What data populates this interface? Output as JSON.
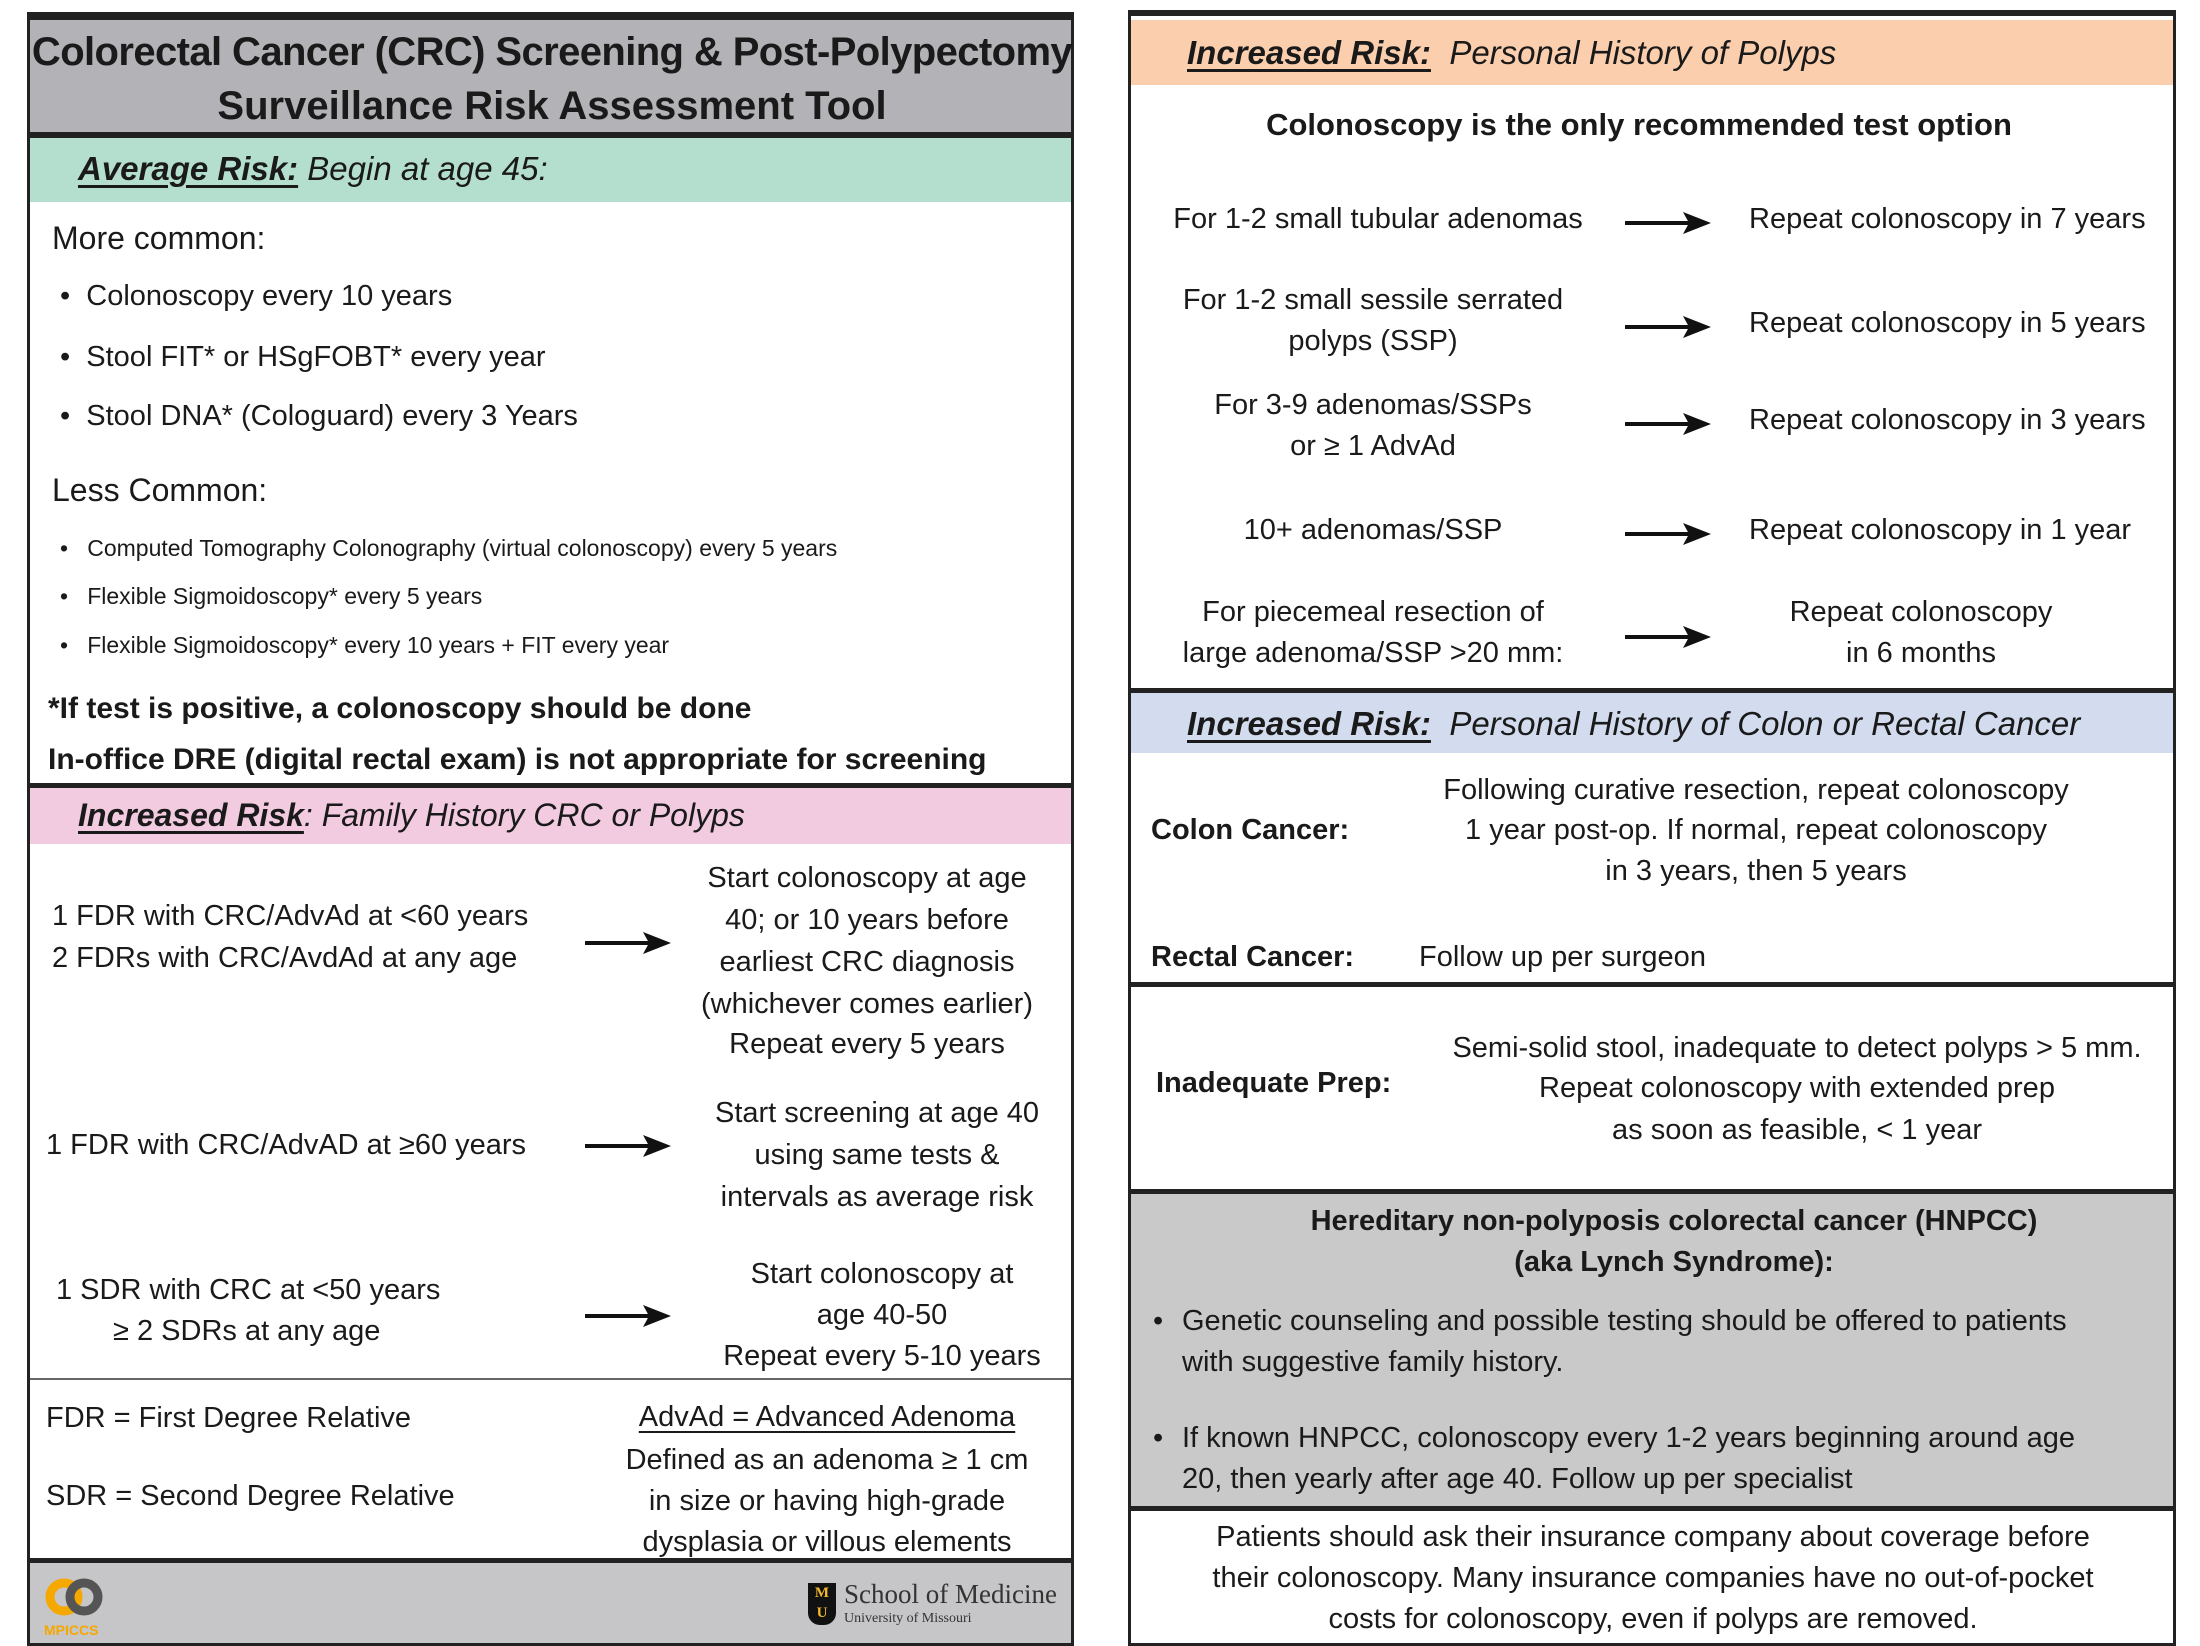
{
  "left": {
    "title": [
      "Colorectal Cancer (CRC) Screening & Post-Polypectomy",
      "Surveillance Risk Assessment Tool"
    ],
    "average": {
      "label": "Average Risk:",
      "subtitle": "Begin at age 45:",
      "more_common_heading": "More common:",
      "more_common": [
        "Colonoscopy every 10 years",
        "Stool FIT* or HSgFOBT* every year",
        "Stool DNA* (Cologuard) every 3 Years"
      ],
      "less_common_heading": "Less Common:",
      "less_common": [
        "Computed Tomography Colonography (virtual colonoscopy) every 5 years",
        "Flexible Sigmoidoscopy* every 5 years",
        "Flexible Sigmoidoscopy* every 10 years + FIT every year"
      ],
      "note1": "*If test is positive, a colonoscopy should be done",
      "note2": "In-office DRE (digital rectal exam) is not appropriate for screening"
    },
    "family": {
      "label": "Increased Risk",
      "subtitle": ": Family History CRC or Polyps",
      "rows": [
        {
          "left": [
            "1 FDR with CRC/AdvAd at <60 years",
            "2 FDRs with CRC/AvdAd at any age"
          ],
          "right": [
            "Start colonoscopy at age",
            "40; or 10 years before",
            "earliest CRC diagnosis",
            "(whichever comes earlier)",
            "Repeat every 5 years"
          ]
        },
        {
          "left": [
            "1 FDR with CRC/AdvAD at ≥60 years"
          ],
          "right": [
            "Start screening at age 40",
            "using same tests &",
            "intervals as average risk"
          ]
        },
        {
          "left": [
            "1 SDR with CRC at <50 years",
            "≥ 2 SDRs at any age"
          ],
          "right": [
            "Start colonoscopy at",
            "age 40-50",
            "Repeat every 5-10 years"
          ]
        }
      ]
    },
    "definitions": {
      "fdr": "FDR = First Degree Relative",
      "sdr": "SDR = Second Degree Relative",
      "advad_title": "AdvAd = Advanced Adenoma",
      "advad_text": [
        "Defined as an adenoma ≥ 1 cm",
        "in size or having high-grade",
        "dysplasia or villous elements"
      ]
    },
    "footer": {
      "logo_left": "MPICCS",
      "logo_right_title": "School of Medicine",
      "logo_right_sub": "University of Missouri"
    }
  },
  "right": {
    "polyps": {
      "label": "Increased Risk:",
      "subtitle": "Personal History of Polyps",
      "heading": "Colonoscopy is the only recommended test option",
      "rows": [
        {
          "left": [
            "For 1-2 small tubular adenomas"
          ],
          "right": [
            "Repeat colonoscopy in 7 years"
          ]
        },
        {
          "left": [
            "For 1-2 small sessile serrated",
            "polyps (SSP)"
          ],
          "right": [
            "Repeat colonoscopy in 5 years"
          ]
        },
        {
          "left": [
            "For 3-9 adenomas/SSPs",
            "or ≥ 1 AdvAd"
          ],
          "right": [
            "Repeat colonoscopy in 3 years"
          ]
        },
        {
          "left": [
            "10+ adenomas/SSP"
          ],
          "right": [
            "Repeat colonoscopy in 1 year"
          ]
        },
        {
          "left": [
            "For piecemeal resection of",
            "large adenoma/SSP >20 mm:"
          ],
          "right": [
            "Repeat colonoscopy",
            "in 6 months"
          ]
        }
      ]
    },
    "cancer": {
      "label": "Increased Risk:",
      "subtitle": "Personal History of Colon or Rectal Cancer",
      "colon_label": "Colon Cancer:",
      "colon_text": [
        "Following curative resection, repeat colonoscopy",
        "1 year post-op. If normal, repeat colonoscopy",
        "in 3 years, then 5 years"
      ],
      "rectal_label": "Rectal Cancer:",
      "rectal_text": "Follow up per surgeon"
    },
    "prep": {
      "label": "Inadequate Prep:",
      "text": [
        "Semi-solid stool, inadequate to detect polyps > 5 mm.",
        "Repeat colonoscopy with extended prep",
        "as soon as feasible, < 1 year"
      ]
    },
    "hnpcc": {
      "heading": [
        "Hereditary non-polyposis colorectal cancer (HNPCC)",
        "(aka Lynch Syndrome):"
      ],
      "bullets": [
        [
          "Genetic counseling and possible testing should be offered to patients",
          "with suggestive family history."
        ],
        [
          "If known HNPCC, colonoscopy every 1-2 years beginning around age",
          "20, then yearly after age 40. Follow up per specialist"
        ]
      ]
    },
    "insurance": [
      "Patients should ask their insurance company about coverage before",
      "their colonoscopy. Many insurance companies have no out-of-pocket",
      "costs for colonoscopy, even if polyps are removed."
    ]
  },
  "colors": {
    "title_band": "#b3b2b7",
    "average_band": "#b4dfcf",
    "family_band": "#f3cbe1",
    "polyps_band": "#fbcfae",
    "cancer_band": "#d3dcee",
    "hnpcc_band": "#c9c9c9",
    "footer_band": "#c6c6c8",
    "mpiccs_gold": "#f5a800"
  }
}
